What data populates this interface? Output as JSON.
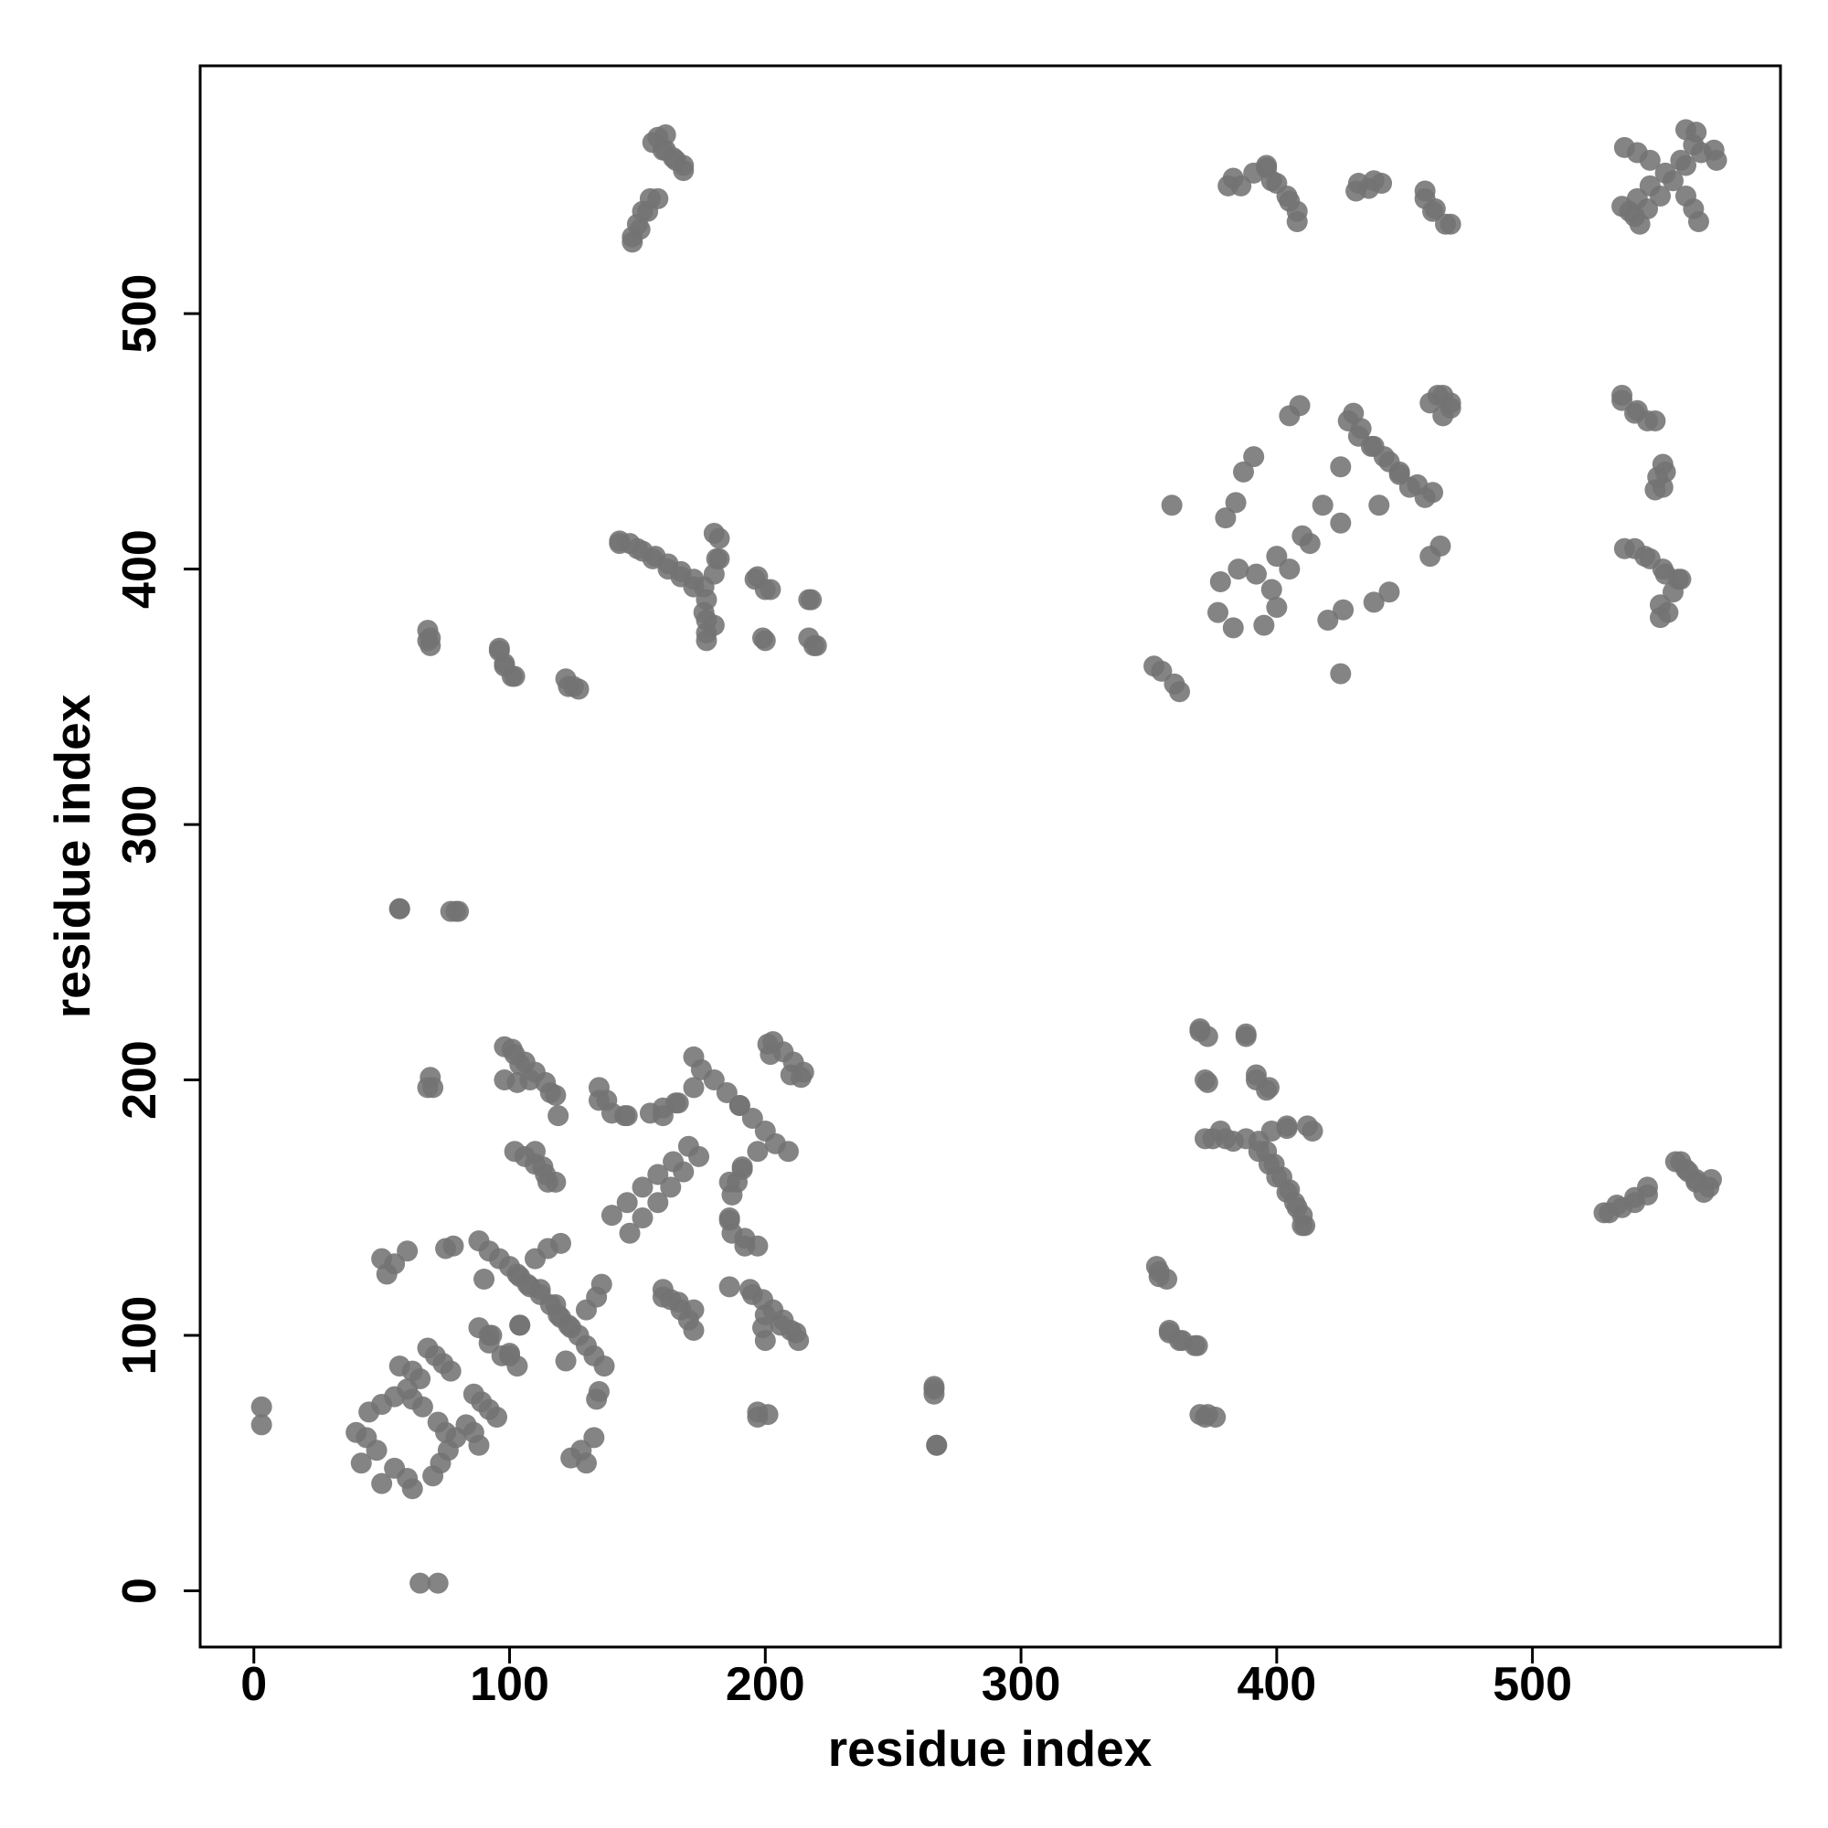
{
  "chart_data": {
    "type": "scatter",
    "x_label": "residue index",
    "y_label": "residue index",
    "color": "#737373",
    "xlim": [
      -21,
      597
    ],
    "ylim": [
      -22,
      597
    ],
    "xticks": [
      0,
      100,
      200,
      300,
      400,
      500
    ],
    "yticks": [
      0,
      100,
      200,
      300,
      400,
      500
    ],
    "x": [
      3,
      3,
      57,
      77,
      80,
      69,
      69,
      96,
      98,
      102,
      123,
      127,
      143,
      147,
      152,
      157,
      162,
      167,
      172,
      176,
      180,
      182,
      182,
      176,
      177,
      180,
      196,
      200,
      199,
      217,
      219,
      148,
      151,
      154,
      158,
      156,
      160,
      164,
      168,
      161,
      70,
      98,
      102,
      106,
      110,
      114,
      118,
      119,
      102,
      106,
      110,
      114,
      118,
      98,
      103,
      135,
      140,
      146,
      155,
      160,
      165,
      172,
      175,
      180,
      185,
      190,
      140,
      146,
      152,
      158,
      164,
      170,
      203,
      207,
      210,
      214,
      50,
      55,
      60,
      75,
      78,
      52,
      88,
      92,
      96,
      100,
      104,
      108,
      112,
      116,
      120,
      124,
      90,
      88,
      92,
      97,
      100,
      104,
      110,
      115,
      120,
      45,
      50,
      55,
      60,
      65,
      57,
      62,
      68,
      71,
      74,
      77,
      66,
      62,
      40,
      44,
      48,
      42,
      352,
      355,
      359,
      380,
      384,
      387,
      391,
      378,
      385,
      392,
      377,
      405,
      409,
      428,
      432,
      437,
      442,
      448,
      455,
      461,
      460,
      465,
      468,
      418,
      425,
      400,
      410,
      381,
      386,
      391,
      396,
      400,
      404,
      408,
      431,
      436,
      441,
      458,
      461,
      466,
      535,
      540,
      545,
      550,
      555,
      560,
      563,
      564,
      536,
      541,
      546,
      572,
      370,
      373,
      388,
      392,
      397,
      372,
      372,
      380,
      388,
      393,
      397,
      400,
      404,
      408,
      410,
      404,
      414,
      354,
      357,
      358,
      363,
      369,
      372,
      376,
      266,
      267,
      197,
      201,
      530,
      535,
      540,
      545,
      556,
      560,
      564,
      569,
      160,
      166,
      172,
      195,
      200,
      206,
      212,
      186,
      192,
      197,
      186,
      191,
      197,
      535,
      541,
      548,
      552,
      551,
      536,
      544,
      552,
      558,
      553,
      65,
      72,
      267,
      266,
      266,
      373,
      370,
      368,
      362,
      358,
      354,
      353,
      411,
      410,
      407,
      405,
      402,
      399,
      396,
      393,
      398,
      404,
      412,
      383,
      375,
      378,
      396,
      392,
      373,
      388,
      370,
      528,
      533,
      540,
      545,
      567,
      564,
      561,
      558,
      570,
      197,
      213,
      210,
      207,
      203,
      199,
      194,
      186,
      172,
      170,
      167,
      163,
      160,
      200,
      199,
      192,
      187,
      186,
      187,
      189,
      191,
      209,
      204,
      200,
      195,
      190,
      147,
      152,
      158,
      163,
      168,
      174,
      215,
      211,
      202,
      201,
      130,
      128,
      133,
      134,
      135,
      124,
      137,
      133,
      130,
      127,
      123,
      119,
      118,
      112,
      107,
      103,
      122,
      103,
      100,
      92,
      93,
      104,
      130,
      134,
      136,
      70,
      73,
      76,
      79,
      83,
      88,
      86,
      95,
      92,
      89,
      86,
      72,
      75,
      62,
      60,
      55,
      50,
      362,
      360,
      425,
      420,
      426,
      438,
      444,
      395,
      400,
      398,
      383,
      460,
      464,
      458,
      452,
      448,
      444,
      438,
      433,
      430,
      465,
      468,
      463,
      425,
      440,
      405,
      413,
      550,
      550,
      555,
      557,
      551,
      546,
      540,
      548,
      549,
      551,
      545,
      540,
      535,
      542,
      538,
      541,
      546,
      552,
      558,
      566,
      571,
      565,
      563,
      560,
      560,
      220,
      217,
      218,
      202,
      197,
      200,
      177,
      177,
      177,
      172,
      167,
      162,
      156,
      150,
      143,
      181,
      180,
      125,
      122,
      101,
      98,
      96,
      68,
      68,
      79,
      57,
      68,
      69,
      148,
      150,
      152,
      155,
      168,
      165,
      161,
      158,
      115,
      113,
      110,
      116,
      108,
      104,
      101,
      145,
      138,
      135,
      160,
      166,
      172,
      468,
      462,
      458,
      438,
      432,
      408,
      405,
      398,
      396,
      383
    ],
    "values": [
      65,
      72,
      267,
      266,
      266,
      373,
      370,
      368,
      362,
      358,
      354,
      353,
      411,
      410,
      407,
      405,
      402,
      399,
      396,
      393,
      398,
      404,
      412,
      383,
      375,
      378,
      396,
      392,
      373,
      388,
      370,
      528,
      533,
      540,
      545,
      567,
      564,
      561,
      558,
      570,
      197,
      213,
      210,
      207,
      203,
      199,
      194,
      186,
      172,
      170,
      167,
      163,
      160,
      200,
      199,
      192,
      187,
      186,
      187,
      189,
      191,
      209,
      204,
      200,
      195,
      190,
      147,
      152,
      158,
      163,
      168,
      174,
      215,
      211,
      202,
      201,
      130,
      128,
      133,
      134,
      135,
      124,
      137,
      133,
      130,
      127,
      123,
      119,
      118,
      112,
      107,
      103,
      122,
      103,
      100,
      92,
      93,
      104,
      130,
      134,
      136,
      70,
      73,
      76,
      79,
      83,
      88,
      86,
      95,
      92,
      89,
      86,
      72,
      75,
      62,
      60,
      55,
      50,
      362,
      360,
      425,
      420,
      426,
      438,
      444,
      395,
      400,
      398,
      383,
      460,
      464,
      458,
      452,
      448,
      444,
      438,
      433,
      430,
      465,
      468,
      463,
      425,
      440,
      405,
      413,
      550,
      550,
      555,
      557,
      551,
      546,
      540,
      548,
      549,
      551,
      545,
      540,
      535,
      542,
      538,
      541,
      546,
      552,
      558,
      566,
      571,
      565,
      563,
      560,
      560,
      220,
      217,
      218,
      202,
      197,
      200,
      177,
      177,
      177,
      172,
      167,
      162,
      156,
      150,
      143,
      181,
      180,
      125,
      122,
      101,
      98,
      96,
      68,
      68,
      79,
      57,
      68,
      69,
      148,
      150,
      152,
      155,
      168,
      165,
      161,
      158,
      115,
      113,
      110,
      116,
      108,
      104,
      101,
      145,
      138,
      135,
      160,
      166,
      172,
      468,
      462,
      458,
      438,
      432,
      408,
      405,
      398,
      396,
      383,
      3,
      3,
      57,
      77,
      80,
      69,
      69,
      96,
      98,
      102,
      123,
      127,
      143,
      147,
      152,
      157,
      162,
      167,
      172,
      176,
      180,
      182,
      182,
      176,
      177,
      180,
      196,
      200,
      199,
      217,
      219,
      148,
      151,
      154,
      158,
      156,
      160,
      164,
      168,
      161,
      70,
      98,
      102,
      106,
      110,
      114,
      118,
      119,
      102,
      106,
      110,
      114,
      118,
      98,
      103,
      135,
      140,
      146,
      155,
      160,
      165,
      172,
      175,
      180,
      185,
      190,
      140,
      146,
      152,
      158,
      164,
      170,
      203,
      207,
      210,
      214,
      50,
      55,
      60,
      75,
      78,
      52,
      88,
      92,
      96,
      100,
      104,
      108,
      112,
      116,
      120,
      124,
      90,
      88,
      92,
      97,
      100,
      104,
      110,
      115,
      120,
      45,
      50,
      55,
      60,
      65,
      57,
      62,
      68,
      71,
      74,
      77,
      66,
      62,
      40,
      44,
      48,
      42,
      352,
      355,
      359,
      380,
      384,
      387,
      391,
      378,
      385,
      392,
      377,
      405,
      409,
      428,
      432,
      437,
      442,
      448,
      455,
      461,
      460,
      465,
      468,
      418,
      425,
      400,
      410,
      381,
      386,
      391,
      396,
      400,
      404,
      408,
      431,
      436,
      441,
      458,
      461,
      466,
      535,
      540,
      545,
      550,
      555,
      560,
      563,
      564,
      536,
      541,
      546,
      572,
      370,
      373,
      388,
      392,
      397,
      372,
      372,
      380,
      388,
      393,
      397,
      400,
      404,
      408,
      410,
      404,
      414,
      354,
      357,
      358,
      363,
      369,
      372,
      376,
      266,
      267,
      197,
      201,
      530,
      535,
      540,
      545,
      556,
      560,
      564,
      569,
      160,
      166,
      172,
      195,
      200,
      206,
      212,
      186,
      192,
      197,
      186,
      191,
      197,
      535,
      541,
      548,
      552,
      551,
      536,
      544,
      552,
      558,
      553
    ]
  }
}
